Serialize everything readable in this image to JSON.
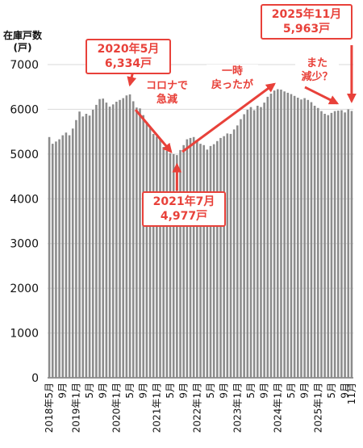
{
  "chart_data": {
    "type": "bar",
    "ylabel": "在庫戸数",
    "yunit": "(戸)",
    "ylim": [
      0,
      7000
    ],
    "yticks": [
      0,
      1000,
      2000,
      3000,
      4000,
      5000,
      6000,
      7000
    ],
    "grid": true,
    "bar_color": "#8c8c8c",
    "annotation_color": "#e8413a",
    "categories": [
      "2018-05",
      "2018-06",
      "2018-07",
      "2018-08",
      "2018-09",
      "2018-10",
      "2018-11",
      "2018-12",
      "2019-01",
      "2019-02",
      "2019-03",
      "2019-04",
      "2019-05",
      "2019-06",
      "2019-07",
      "2019-08",
      "2019-09",
      "2019-10",
      "2019-11",
      "2019-12",
      "2020-01",
      "2020-02",
      "2020-03",
      "2020-04",
      "2020-05",
      "2020-06",
      "2020-07",
      "2020-08",
      "2020-09",
      "2020-10",
      "2020-11",
      "2020-12",
      "2021-01",
      "2021-02",
      "2021-03",
      "2021-04",
      "2021-05",
      "2021-06",
      "2021-07",
      "2021-08",
      "2021-09",
      "2021-10",
      "2021-11",
      "2021-12",
      "2022-01",
      "2022-02",
      "2022-03",
      "2022-04",
      "2022-05",
      "2022-06",
      "2022-07",
      "2022-08",
      "2022-09",
      "2022-10",
      "2022-11",
      "2022-12",
      "2023-01",
      "2023-02",
      "2023-03",
      "2023-04",
      "2023-05",
      "2023-06",
      "2023-07",
      "2023-08",
      "2023-09",
      "2023-10",
      "2023-11",
      "2023-12",
      "2024-01",
      "2024-02",
      "2024-03",
      "2024-04",
      "2024-05",
      "2024-06",
      "2024-07",
      "2024-08",
      "2024-09",
      "2024-10",
      "2024-11",
      "2024-12",
      "2025-01",
      "2025-02",
      "2025-03",
      "2025-04",
      "2025-05",
      "2025-06",
      "2025-07",
      "2025-08",
      "2025-09",
      "2025-10",
      "2025-11"
    ],
    "values": [
      5380,
      5230,
      5280,
      5330,
      5420,
      5480,
      5420,
      5570,
      5760,
      5950,
      5840,
      5900,
      5860,
      5990,
      6100,
      6230,
      6240,
      6150,
      6060,
      6110,
      6170,
      6210,
      6250,
      6310,
      6334,
      6180,
      6040,
      6020,
      5870,
      5720,
      5580,
      5450,
      5390,
      5330,
      5160,
      5070,
      5020,
      5000,
      4977,
      5090,
      5200,
      5330,
      5360,
      5380,
      5310,
      5230,
      5200,
      5100,
      5180,
      5220,
      5290,
      5360,
      5400,
      5460,
      5450,
      5550,
      5640,
      5780,
      5890,
      5990,
      6050,
      5980,
      6080,
      6050,
      6150,
      6280,
      6350,
      6420,
      6450,
      6440,
      6400,
      6370,
      6340,
      6300,
      6260,
      6220,
      6250,
      6210,
      6160,
      6080,
      6030,
      5960,
      5900,
      5870,
      5920,
      5960,
      5970,
      5980,
      5930,
      6000,
      5963
    ],
    "xtick_labels": [
      {
        "i": 0,
        "label": "2018年5月"
      },
      {
        "i": 4,
        "label": "9月"
      },
      {
        "i": 8,
        "label": "2019年1月"
      },
      {
        "i": 12,
        "label": "5月"
      },
      {
        "i": 16,
        "label": "9月"
      },
      {
        "i": 20,
        "label": "2020年1月"
      },
      {
        "i": 24,
        "label": "5月"
      },
      {
        "i": 28,
        "label": "9月"
      },
      {
        "i": 32,
        "label": "2021年1月"
      },
      {
        "i": 36,
        "label": "5月"
      },
      {
        "i": 40,
        "label": "9月"
      },
      {
        "i": 44,
        "label": "2022年1月"
      },
      {
        "i": 48,
        "label": "5月"
      },
      {
        "i": 52,
        "label": "9月"
      },
      {
        "i": 56,
        "label": "2023年1月"
      },
      {
        "i": 60,
        "label": "5月"
      },
      {
        "i": 64,
        "label": "9月"
      },
      {
        "i": 68,
        "label": "2024年1月"
      },
      {
        "i": 72,
        "label": "5月"
      },
      {
        "i": 76,
        "label": "9月"
      },
      {
        "i": 80,
        "label": "2025年1月"
      },
      {
        "i": 84,
        "label": "5月"
      },
      {
        "i": 88,
        "label": "9月"
      },
      {
        "i": 90,
        "label": "11月"
      }
    ]
  },
  "annotations": {
    "peak_2020": {
      "line1": "2020年5月",
      "line2": "6,334戸"
    },
    "low_2021": {
      "line1": "2021年7月",
      "line2": "4,977戸"
    },
    "latest_2025": {
      "line1": "2025年11月",
      "line2": "5,963戸"
    },
    "note_corona": {
      "line1": "コロナで",
      "line2": "急減"
    },
    "note_recovered": {
      "line1": "一時",
      "line2": "戻ったが"
    },
    "note_decline": {
      "line1": "また",
      "line2": "減少？"
    }
  }
}
